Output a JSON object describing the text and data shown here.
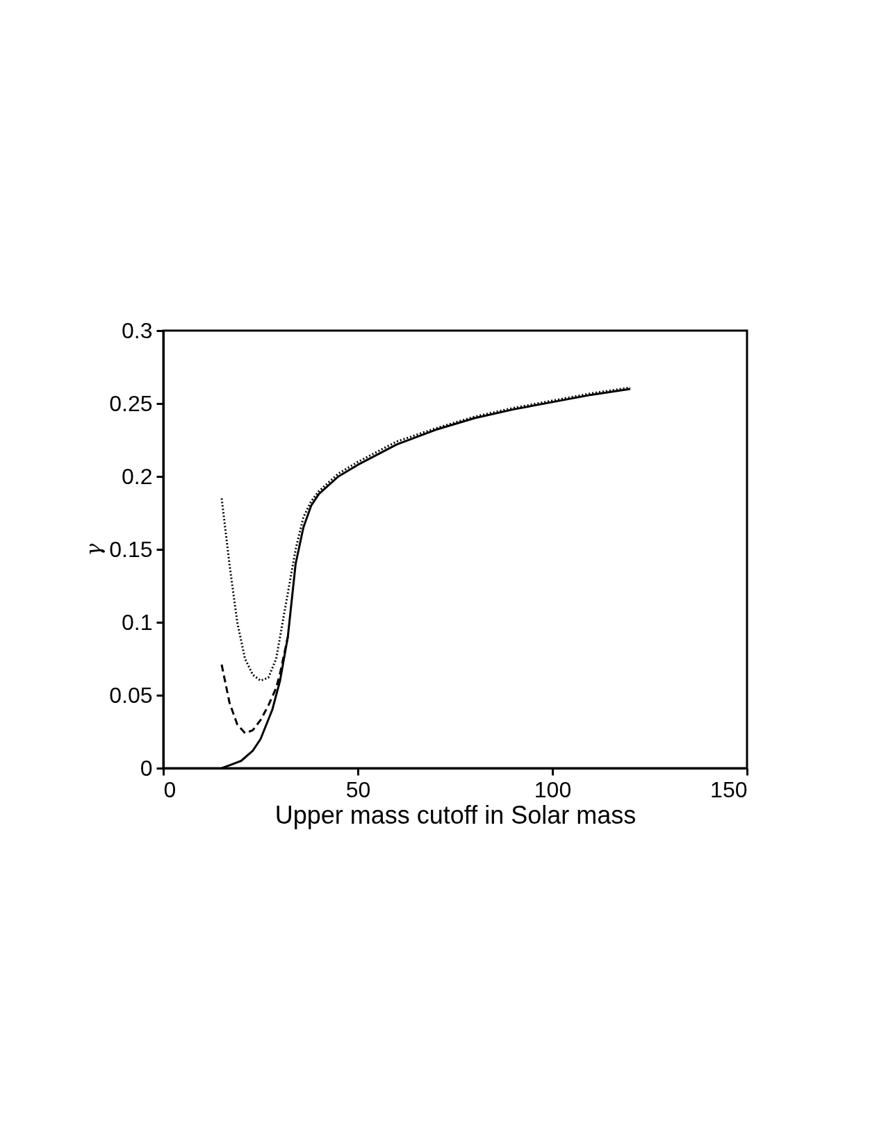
{
  "chart_data": {
    "type": "line",
    "xlabel": "Upper mass cutoff in Solar mass",
    "ylabel": "γ",
    "xlim": [
      0,
      150
    ],
    "xticks": [
      0,
      50,
      100,
      150
    ],
    "ylim": [
      0,
      0.3
    ],
    "yticks": [
      0,
      0.05,
      0.1,
      0.15,
      0.2,
      0.25,
      0.3
    ],
    "grid": false,
    "series": [
      {
        "color": "#000000",
        "line_style": "solid",
        "x": [
          15,
          17,
          20,
          23,
          25,
          28,
          30,
          32,
          34,
          36,
          38,
          40,
          45,
          50,
          60,
          70,
          80,
          90,
          100,
          110,
          120
        ],
        "values": [
          0,
          0.002,
          0.005,
          0.012,
          0.02,
          0.04,
          0.06,
          0.09,
          0.14,
          0.165,
          0.18,
          0.188,
          0.2,
          0.208,
          0.222,
          0.232,
          0.24,
          0.246,
          0.251,
          0.256,
          0.26
        ]
      },
      {
        "color": "#000000",
        "line_style": "dashed",
        "x": [
          15,
          17,
          19,
          21,
          23,
          25,
          27,
          29,
          30,
          32
        ],
        "values": [
          0.071,
          0.045,
          0.03,
          0.024,
          0.026,
          0.033,
          0.043,
          0.055,
          0.065,
          0.09
        ]
      },
      {
        "color": "#000000",
        "line_style": "dotted",
        "x": [
          15,
          17,
          19,
          21,
          23,
          25,
          27,
          29,
          30,
          32,
          34,
          36,
          38,
          40,
          45,
          50,
          60,
          70,
          80,
          90,
          100,
          110,
          120
        ],
        "values": [
          0.185,
          0.14,
          0.1,
          0.075,
          0.064,
          0.06,
          0.062,
          0.075,
          0.09,
          0.12,
          0.15,
          0.172,
          0.183,
          0.19,
          0.202,
          0.21,
          0.224,
          0.233,
          0.241,
          0.247,
          0.252,
          0.257,
          0.261
        ]
      }
    ]
  }
}
